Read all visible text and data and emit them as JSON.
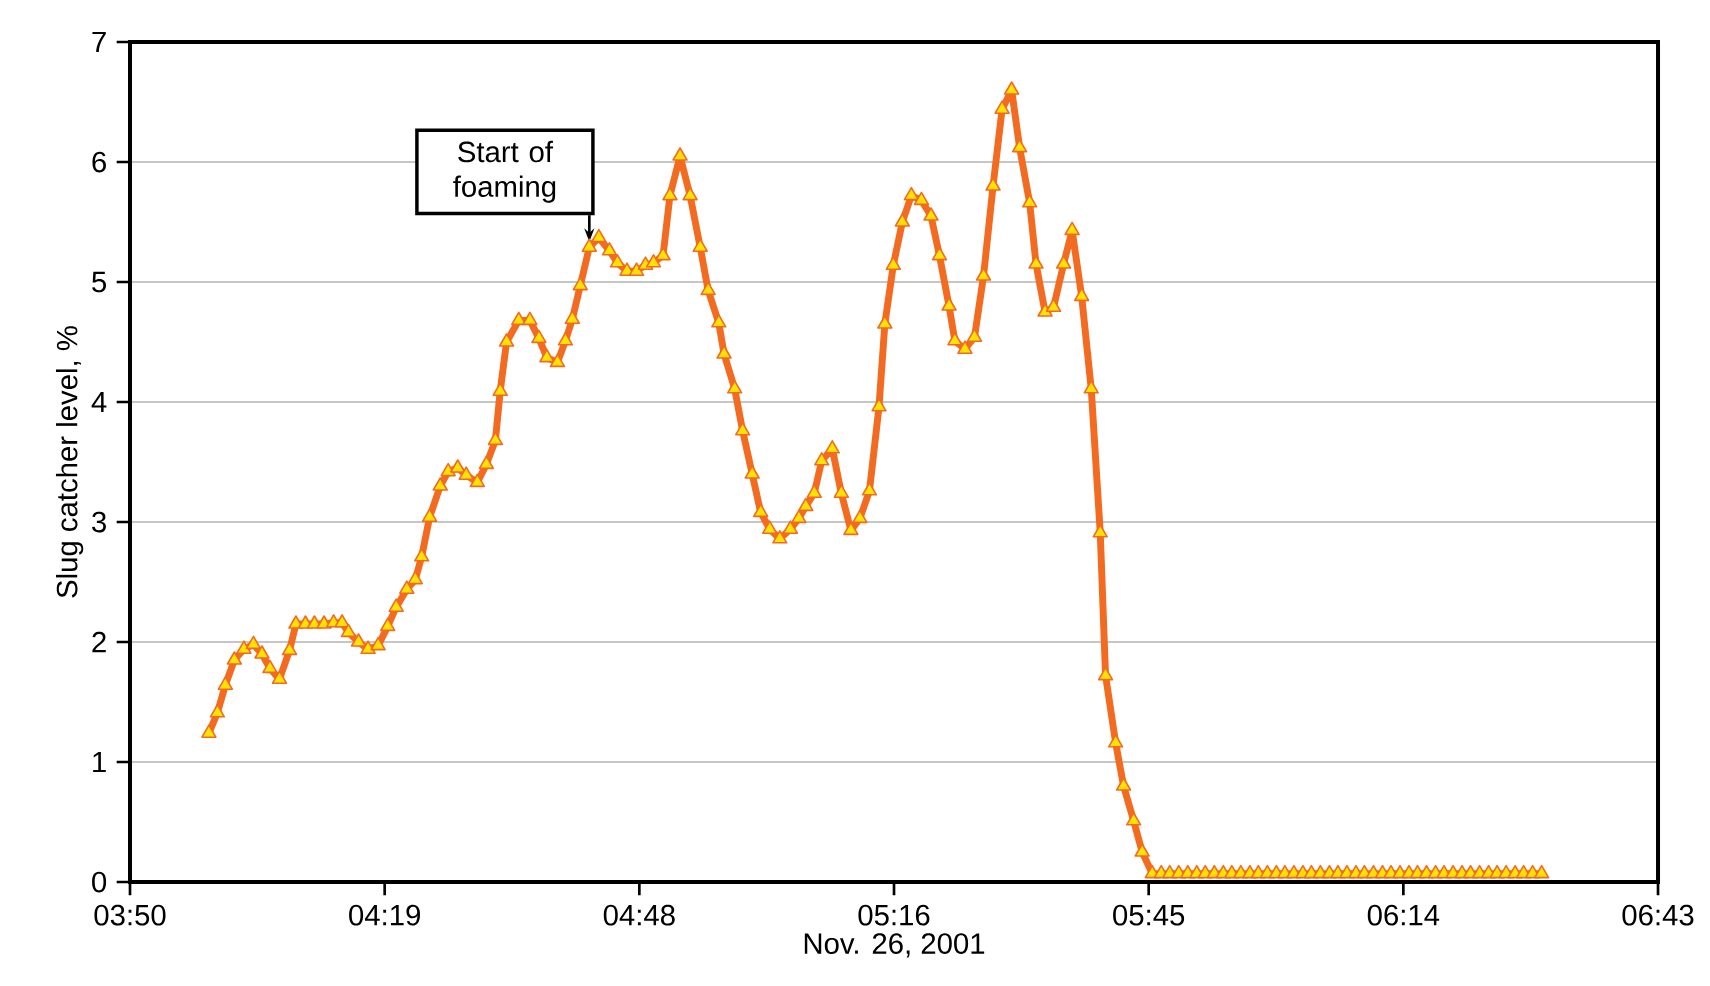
{
  "chart_data": {
    "type": "line",
    "xlabel": "Nov. 26, 2001",
    "ylabel": "Slug catcher level, %",
    "xlim": [
      3.8333,
      6.7133
    ],
    "ylim": [
      0,
      7
    ],
    "xticks": [
      {
        "value": 3.8333,
        "label": "03:50"
      },
      {
        "value": 4.3133,
        "label": "04:19"
      },
      {
        "value": 4.7933,
        "label": "04:48"
      },
      {
        "value": 5.2733,
        "label": "05:16"
      },
      {
        "value": 5.7533,
        "label": "05:45"
      },
      {
        "value": 6.2333,
        "label": "06:14"
      },
      {
        "value": 6.7133,
        "label": "06:43"
      }
    ],
    "yticks": [
      0,
      1,
      2,
      3,
      4,
      5,
      6,
      7
    ],
    "grid": "y",
    "marker": "triangle",
    "line_style": "solid",
    "annotations": [
      {
        "text": "Start of foaming",
        "x": 4.699,
        "y": 5.29
      }
    ],
    "series": [
      {
        "color": "#f26b21",
        "x": [
          3.982,
          3.998,
          4.013,
          4.03,
          4.048,
          4.066,
          4.082,
          4.097,
          4.115,
          4.134,
          4.146,
          4.164,
          4.181,
          4.199,
          4.217,
          4.233,
          4.245,
          4.264,
          4.282,
          4.301,
          4.319,
          4.335,
          4.355,
          4.371,
          4.383,
          4.398,
          4.418,
          4.433,
          4.451,
          4.467,
          4.488,
          4.505,
          4.522,
          4.531,
          4.543,
          4.566,
          4.587,
          4.604,
          4.619,
          4.639,
          4.654,
          4.667,
          4.682,
          4.699,
          4.717,
          4.737,
          4.752,
          4.77,
          4.788,
          4.805,
          4.82,
          4.838,
          4.851,
          4.87,
          4.889,
          4.908,
          4.923,
          4.943,
          4.953,
          4.973,
          4.988,
          5.006,
          5.022,
          5.039,
          5.058,
          5.078,
          5.094,
          5.107,
          5.123,
          5.137,
          5.157,
          5.174,
          5.192,
          5.209,
          5.227,
          5.245,
          5.256,
          5.272,
          5.289,
          5.306,
          5.325,
          5.343,
          5.359,
          5.377,
          5.388,
          5.407,
          5.425,
          5.442,
          5.46,
          5.477,
          5.495,
          5.51,
          5.529,
          5.541,
          5.558,
          5.574,
          5.593,
          5.609,
          5.627,
          5.645,
          5.662,
          5.672,
          5.691,
          5.706,
          5.725,
          5.741,
          5.76,
          5.777,
          5.793,
          5.81,
          5.827,
          5.844,
          5.86,
          5.877,
          5.894,
          5.91,
          5.927,
          5.944,
          5.96,
          5.977,
          5.994,
          6.01,
          6.027,
          6.044,
          6.06,
          6.077,
          6.094,
          6.11,
          6.127,
          6.144,
          6.16,
          6.177,
          6.194,
          6.21,
          6.227,
          6.244,
          6.26,
          6.277,
          6.294,
          6.31,
          6.327,
          6.344,
          6.36,
          6.377,
          6.394,
          6.41,
          6.427,
          6.444,
          6.46,
          6.477,
          6.494
        ],
        "values": [
          1.24,
          1.41,
          1.64,
          1.85,
          1.94,
          1.98,
          1.9,
          1.78,
          1.69,
          1.93,
          2.15,
          2.15,
          2.15,
          2.15,
          2.16,
          2.16,
          2.08,
          2.0,
          1.94,
          1.97,
          2.13,
          2.29,
          2.44,
          2.52,
          2.71,
          3.04,
          3.3,
          3.42,
          3.45,
          3.39,
          3.33,
          3.48,
          3.68,
          4.09,
          4.5,
          4.68,
          4.68,
          4.53,
          4.37,
          4.33,
          4.51,
          4.69,
          4.97,
          5.29,
          5.37,
          5.26,
          5.16,
          5.09,
          5.09,
          5.14,
          5.16,
          5.22,
          5.72,
          6.05,
          5.72,
          5.29,
          4.93,
          4.66,
          4.4,
          4.11,
          3.76,
          3.4,
          3.08,
          2.94,
          2.86,
          2.94,
          3.03,
          3.13,
          3.24,
          3.51,
          3.61,
          3.24,
          2.93,
          3.03,
          3.26,
          3.96,
          4.65,
          5.14,
          5.5,
          5.72,
          5.68,
          5.55,
          5.22,
          4.8,
          4.51,
          4.44,
          4.54,
          5.05,
          5.8,
          6.44,
          6.6,
          6.12,
          5.66,
          5.15,
          4.75,
          4.79,
          5.15,
          5.43,
          4.88,
          4.11,
          2.91,
          1.72,
          1.16,
          0.8,
          0.51,
          0.25,
          0.07,
          0.07,
          0.07,
          0.07,
          0.07,
          0.07,
          0.07,
          0.07,
          0.07,
          0.07,
          0.07,
          0.07,
          0.07,
          0.07,
          0.07,
          0.07,
          0.07,
          0.07,
          0.07,
          0.07,
          0.07,
          0.07,
          0.07,
          0.07,
          0.07,
          0.07,
          0.07,
          0.07,
          0.07,
          0.07,
          0.07,
          0.07,
          0.07,
          0.07,
          0.07,
          0.07,
          0.07,
          0.07,
          0.07,
          0.07,
          0.07,
          0.07,
          0.07,
          0.07,
          0.07
        ]
      }
    ]
  }
}
